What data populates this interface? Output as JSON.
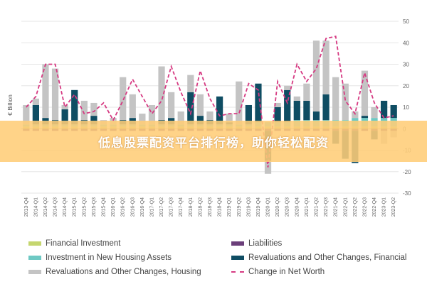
{
  "chart_data": {
    "type": "bar",
    "ylabel": "€ Billion",
    "ylim": [
      -30,
      50
    ],
    "yticks": [
      -30,
      -20,
      -10,
      0,
      10,
      20,
      30,
      40,
      50
    ],
    "grid": true,
    "legend_position": "bottom",
    "categories": [
      "2013-Q4",
      "2014-Q1",
      "2014-Q2",
      "2014-Q3",
      "2014-Q4",
      "2015-Q1",
      "2015-Q2",
      "2015-Q3",
      "2015-Q4",
      "2016-Q1",
      "2016-Q2",
      "2016-Q3",
      "2016-Q4",
      "2017-Q1",
      "2017-Q2",
      "2017-Q3",
      "2017-Q4",
      "2018-Q1",
      "2018-Q2",
      "2018-Q3",
      "2018-Q4",
      "2019-Q1",
      "2019-Q2",
      "2019-Q3",
      "2019-Q4",
      "2020-Q1",
      "2020-Q2",
      "2020-Q3",
      "2020-Q4",
      "2021-Q1",
      "2021-Q2",
      "2021-Q3",
      "2021-Q4",
      "2022-Q1",
      "2022-Q2",
      "2022-Q3",
      "2022-Q4",
      "2023-Q1",
      "2023-Q2"
    ],
    "series": [
      {
        "name": "Financial Investment",
        "kind": "bar",
        "color": "#c5d66f",
        "values": [
          1,
          1,
          1,
          1,
          1,
          1,
          1,
          1,
          1,
          1,
          1,
          1,
          1,
          1,
          1,
          1,
          1,
          1,
          1,
          1,
          1,
          1,
          1,
          1,
          1,
          1,
          1,
          1,
          1,
          1,
          1,
          1,
          1,
          1,
          1,
          1,
          1,
          1,
          1
        ]
      },
      {
        "name": "Liabilities",
        "kind": "bar",
        "color": "#6b3f7a",
        "values": [
          -1,
          -1,
          -1,
          -1,
          -1,
          -1,
          -1,
          -1,
          -1,
          -1,
          -1,
          -1,
          -1,
          -1,
          -1,
          -1,
          -1,
          -1,
          -1,
          -1,
          -1,
          -1,
          -1,
          -1,
          -1,
          -1,
          -1,
          -1,
          -1,
          -1,
          -1,
          -1,
          -1,
          -1,
          -1,
          -1,
          -1,
          -1,
          -1
        ]
      },
      {
        "name": "Investment in New Housing Assets",
        "kind": "bar",
        "color": "#6ec9c4",
        "values": [
          1,
          1,
          1,
          1,
          1,
          1,
          1,
          1,
          1,
          1,
          1,
          1,
          1,
          1,
          1,
          1,
          1,
          1,
          1,
          1,
          1,
          1,
          1,
          1,
          2,
          2,
          2,
          2,
          3,
          3,
          3,
          3,
          3,
          3,
          4,
          4,
          4,
          4,
          4
        ]
      },
      {
        "name": "Revaluations and Other Changes, Financial",
        "kind": "bar",
        "color": "#0f4d63",
        "values": [
          0,
          9,
          3,
          2,
          7,
          16,
          2,
          4,
          0,
          0,
          2,
          3,
          0,
          0,
          2,
          3,
          0,
          15,
          4,
          2,
          13,
          1,
          0,
          9,
          18,
          -14,
          7,
          15,
          9,
          9,
          4,
          12,
          -6,
          -13,
          -15,
          1,
          -4,
          8,
          6
        ]
      },
      {
        "name": "Revaluations and Other Changes, Housing",
        "kind": "bar",
        "color": "#c4c4c4",
        "values": [
          9,
          3,
          25,
          24,
          2,
          0,
          9,
          6,
          2,
          3,
          20,
          11,
          5,
          9,
          25,
          12,
          6,
          8,
          10,
          4,
          0,
          4,
          20,
          0,
          0,
          -6,
          2,
          2,
          2,
          8,
          33,
          25,
          20,
          17,
          3,
          21,
          5,
          -6,
          -3
        ]
      },
      {
        "name": "Change in Net Worth",
        "kind": "line",
        "color": "#d63a82",
        "dashed": true,
        "values": [
          10,
          15,
          30,
          30,
          10,
          16,
          7,
          8,
          12,
          4,
          13,
          23,
          15,
          7,
          13,
          29,
          17,
          7,
          27,
          14,
          6,
          7,
          7,
          21,
          18,
          -18,
          22,
          12,
          30,
          22,
          28,
          42,
          43,
          13,
          7,
          26,
          12,
          5,
          6
        ]
      }
    ]
  },
  "legend": [
    {
      "label": "Financial Investment",
      "type": "swatch",
      "color": "#c5d66f"
    },
    {
      "label": "Liabilities",
      "type": "swatch",
      "color": "#6b3f7a"
    },
    {
      "label": "Investment in New Housing Assets",
      "type": "swatch",
      "color": "#6ec9c4"
    },
    {
      "label": "Revaluations and Other Changes, Financial",
      "type": "swatch",
      "color": "#0f4d63"
    },
    {
      "label": "Revaluations and Other Changes, Housing",
      "type": "swatch",
      "color": "#c4c4c4"
    },
    {
      "label": "Change in Net Worth",
      "type": "dashed-line",
      "color": "#d63a82"
    }
  ],
  "banner": {
    "text": "低息股票配资平台排行榜，助你轻松配资"
  }
}
